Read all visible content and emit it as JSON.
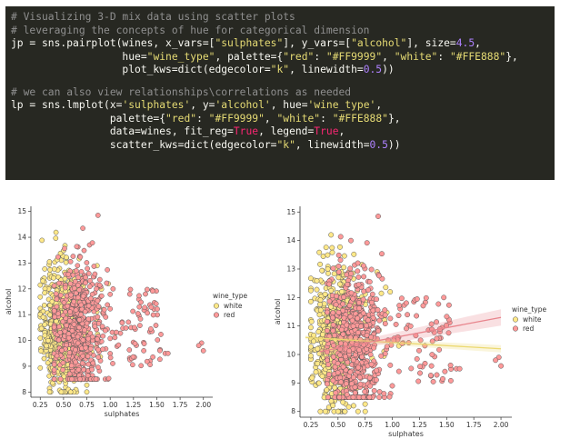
{
  "code": {
    "lines": [
      [
        {
          "t": "# Visualizing 3-D mix data using scatter plots",
          "c": "comment"
        }
      ],
      [
        {
          "t": "# leveraging the concepts of hue for categorical dimension",
          "c": "comment"
        }
      ],
      [
        {
          "t": "jp = sns.pairplot(wines, x_vars=[",
          "c": "plain"
        },
        {
          "t": "\"sulphates\"",
          "c": "string"
        },
        {
          "t": "], y_vars=[",
          "c": "plain"
        },
        {
          "t": "\"alcohol\"",
          "c": "string"
        },
        {
          "t": "], size=",
          "c": "plain"
        },
        {
          "t": "4.5",
          "c": "number"
        },
        {
          "t": ",",
          "c": "plain"
        }
      ],
      [
        {
          "t": "                  hue=",
          "c": "plain"
        },
        {
          "t": "\"wine_type\"",
          "c": "string"
        },
        {
          "t": ", palette={",
          "c": "plain"
        },
        {
          "t": "\"red\"",
          "c": "string"
        },
        {
          "t": ": ",
          "c": "plain"
        },
        {
          "t": "\"#FF9999\"",
          "c": "string"
        },
        {
          "t": ", ",
          "c": "plain"
        },
        {
          "t": "\"white\"",
          "c": "string"
        },
        {
          "t": ": ",
          "c": "plain"
        },
        {
          "t": "\"#FFE888\"",
          "c": "string"
        },
        {
          "t": "},",
          "c": "plain"
        }
      ],
      [
        {
          "t": "                  plot_kws=dict(edgecolor=",
          "c": "plain"
        },
        {
          "t": "\"k\"",
          "c": "string"
        },
        {
          "t": ", linewidth=",
          "c": "plain"
        },
        {
          "t": "0.5",
          "c": "number"
        },
        {
          "t": "))",
          "c": "plain"
        }
      ],
      [],
      [
        {
          "t": "# we can also view relationships\\correlations as needed",
          "c": "comment"
        }
      ],
      [
        {
          "t": "lp = sns.lmplot(x=",
          "c": "plain"
        },
        {
          "t": "'sulphates'",
          "c": "string"
        },
        {
          "t": ", y=",
          "c": "plain"
        },
        {
          "t": "'alcohol'",
          "c": "string"
        },
        {
          "t": ", hue=",
          "c": "plain"
        },
        {
          "t": "'wine_type'",
          "c": "string"
        },
        {
          "t": ",",
          "c": "plain"
        }
      ],
      [
        {
          "t": "                palette={",
          "c": "plain"
        },
        {
          "t": "\"red\"",
          "c": "string"
        },
        {
          "t": ": ",
          "c": "plain"
        },
        {
          "t": "\"#FF9999\"",
          "c": "string"
        },
        {
          "t": ", ",
          "c": "plain"
        },
        {
          "t": "\"white\"",
          "c": "string"
        },
        {
          "t": ": ",
          "c": "plain"
        },
        {
          "t": "\"#FFE888\"",
          "c": "string"
        },
        {
          "t": "},",
          "c": "plain"
        }
      ],
      [
        {
          "t": "                data=wines, fit_reg=",
          "c": "plain"
        },
        {
          "t": "True",
          "c": "keyword"
        },
        {
          "t": ", legend=",
          "c": "plain"
        },
        {
          "t": "True",
          "c": "keyword"
        },
        {
          "t": ",",
          "c": "plain"
        }
      ],
      [
        {
          "t": "                scatter_kws=dict(edgecolor=",
          "c": "plain"
        },
        {
          "t": "\"k\"",
          "c": "string"
        },
        {
          "t": ", linewidth=",
          "c": "plain"
        },
        {
          "t": "0.5",
          "c": "number"
        },
        {
          "t": "))",
          "c": "plain"
        }
      ]
    ]
  },
  "colors": {
    "red": "#FF9999",
    "white": "#FFE888",
    "edge": "#555555",
    "red_line": "#e8848c",
    "white_line": "#ecd970"
  },
  "chart_data": [
    {
      "type": "scatter",
      "xlabel": "sulphates",
      "ylabel": "alcohol",
      "xlim": [
        0.15,
        2.1
      ],
      "ylim": [
        7.8,
        15.2
      ],
      "xticks": [
        "0.25",
        "0.50",
        "0.75",
        "1.00",
        "1.25",
        "1.50",
        "1.75",
        "2.00"
      ],
      "yticks": [
        "8",
        "9",
        "10",
        "11",
        "12",
        "13",
        "14",
        "15"
      ],
      "legend": {
        "title": "wine_type",
        "entries": [
          "white",
          "red"
        ],
        "placement": "right"
      },
      "series": [
        {
          "name": "white",
          "color": "#FFE888",
          "cluster": {
            "x_range": [
              0.25,
              0.75
            ],
            "x_center": 0.48,
            "y_range": [
              8.0,
              14.2
            ],
            "y_center": 10.5
          },
          "outliers": [
            [
              0.86,
              12.9
            ],
            [
              0.93,
              11.2
            ],
            [
              0.98,
              12.2
            ],
            [
              1.06,
              10.3
            ]
          ]
        },
        {
          "name": "red",
          "color": "#FF9999",
          "cluster": {
            "x_range": [
              0.4,
              1.0
            ],
            "x_center": 0.66,
            "y_range": [
              8.5,
              14.9
            ],
            "y_center": 10.4
          },
          "outliers": [
            [
              1.36,
              9.6
            ],
            [
              1.59,
              9.5
            ],
            [
              1.98,
              9.9
            ],
            [
              2.0,
              9.6
            ],
            [
              1.95,
              9.8
            ],
            [
              1.26,
              10.5
            ],
            [
              1.62,
              9.5
            ],
            [
              0.87,
              14.85
            ]
          ]
        }
      ]
    },
    {
      "type": "scatter",
      "xlabel": "sulphates",
      "ylabel": "alcohol",
      "xlim": [
        0.15,
        2.1
      ],
      "ylim": [
        7.8,
        15.2
      ],
      "xticks": [
        "0.25",
        "0.50",
        "0.75",
        "1.00",
        "1.25",
        "1.50",
        "1.75",
        "2.00"
      ],
      "yticks": [
        "8",
        "9",
        "10",
        "11",
        "12",
        "13",
        "14",
        "15"
      ],
      "legend": {
        "title": "wine_type",
        "entries": [
          "white",
          "red"
        ],
        "placement": "right"
      },
      "regression": [
        {
          "name": "white",
          "x": [
            0.2,
            2.0
          ],
          "y": [
            10.6,
            10.2
          ]
        },
        {
          "name": "red",
          "x": [
            0.33,
            2.0
          ],
          "y": [
            10.1,
            11.3
          ]
        }
      ],
      "series": [
        {
          "name": "white",
          "color": "#FFE888",
          "cluster": {
            "x_range": [
              0.25,
              0.75
            ],
            "x_center": 0.48,
            "y_range": [
              8.0,
              14.2
            ],
            "y_center": 10.5
          },
          "outliers": [
            [
              0.86,
              12.9
            ],
            [
              0.93,
              11.2
            ],
            [
              0.98,
              12.2
            ],
            [
              1.06,
              10.3
            ]
          ]
        },
        {
          "name": "red",
          "color": "#FF9999",
          "cluster": {
            "x_range": [
              0.4,
              1.0
            ],
            "x_center": 0.66,
            "y_range": [
              8.5,
              14.9
            ],
            "y_center": 10.4
          },
          "outliers": [
            [
              1.36,
              9.6
            ],
            [
              1.59,
              9.5
            ],
            [
              1.98,
              9.9
            ],
            [
              2.0,
              9.6
            ],
            [
              1.95,
              9.8
            ],
            [
              1.26,
              10.5
            ],
            [
              1.62,
              9.5
            ],
            [
              0.87,
              14.85
            ]
          ]
        }
      ]
    }
  ]
}
